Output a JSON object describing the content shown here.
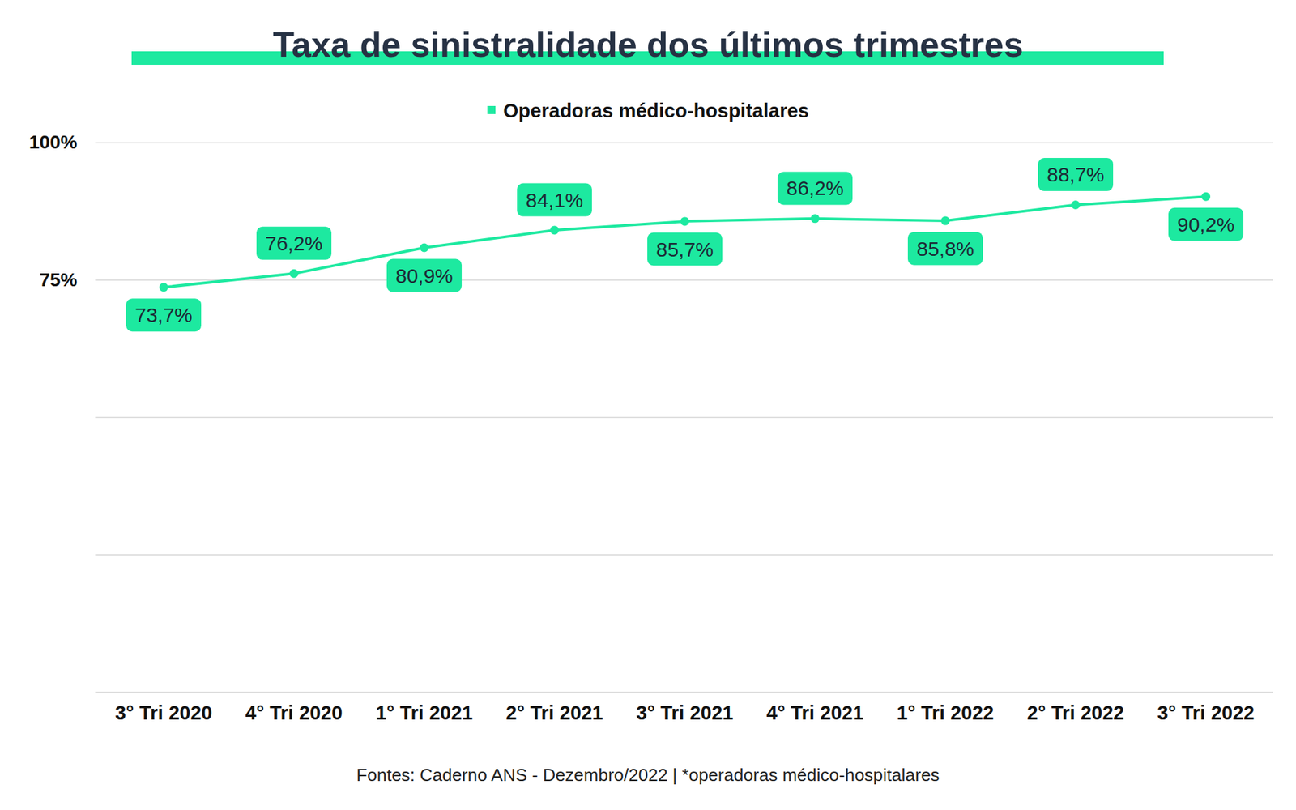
{
  "chart_data": {
    "type": "line",
    "title": "Taxa de sinistralidade dos últimos trimestres",
    "caption": "Fontes: Caderno ANS - Dezembro/2022 | *operadoras médico-hospitalares",
    "categories": [
      "3° Tri 2020",
      "4° Tri 2020",
      "1° Tri 2021",
      "2° Tri 2021",
      "3° Tri 2021",
      "4° Tri 2021",
      "1° Tri 2022",
      "2° Tri 2022",
      "3° Tri 2022"
    ],
    "series": [
      {
        "name": "Operadoras médico-hospitalares",
        "color": "#1de9a0",
        "values": [
          73.7,
          76.2,
          80.9,
          84.1,
          85.7,
          86.2,
          85.8,
          88.7,
          90.2
        ],
        "value_labels": [
          "73,7%",
          "76,2%",
          "80,9%",
          "84,1%",
          "85,7%",
          "86,2%",
          "85,8%",
          "88,7%",
          "90,2%"
        ]
      }
    ],
    "ylim": [
      0,
      100
    ],
    "yticks": [
      {
        "value": 0,
        "label": null
      },
      {
        "value": 25,
        "label": null
      },
      {
        "value": 50,
        "label": null
      },
      {
        "value": 75,
        "label": "75%"
      },
      {
        "value": 100,
        "label": "100%"
      }
    ],
    "grid": true,
    "legend": "top",
    "data_labels": true,
    "marker": "circle"
  }
}
